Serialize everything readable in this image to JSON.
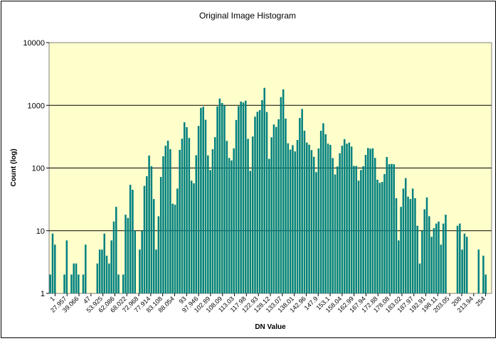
{
  "chart_data": {
    "type": "bar",
    "title": "Original Image Histogram",
    "xlabel": "DN Value",
    "ylabel": "Count (log)",
    "y_scale": "log",
    "ylim": [
      1,
      10000
    ],
    "y_ticks": [
      "1",
      "10",
      "100",
      "1000",
      "10000"
    ],
    "x_tick_labels": [
      "1",
      "27.957",
      "39.066",
      "47",
      "53.925",
      "62.086",
      "68.022",
      "72.968",
      "77.914",
      "83.108",
      "88.054",
      "93",
      "97.946",
      "102.89",
      "108.09",
      "113.03",
      "117.98",
      "122.93",
      "128.12",
      "133.07",
      "138.01",
      "142.96",
      "147.9",
      "153.1",
      "158.04",
      "162.99",
      "167.94",
      "172.88",
      "178.08",
      "183.02",
      "187.97",
      "192.91",
      "198.11",
      "203.05",
      "208",
      "213.94",
      "254"
    ],
    "grid": "horizontal",
    "plot_background": "#ffffcc",
    "bar_color": "#008080",
    "values": [
      2,
      9,
      6,
      0,
      0,
      0,
      2,
      7,
      0,
      2,
      3,
      3,
      2,
      0,
      2,
      6,
      0,
      0,
      0,
      0,
      3,
      5,
      5,
      9,
      4,
      3,
      7,
      14,
      24,
      2,
      0,
      2,
      18,
      16,
      54,
      45,
      10,
      0,
      5,
      10,
      52,
      74,
      158,
      107,
      32,
      5,
      17,
      72,
      154,
      227,
      273,
      200,
      27,
      26,
      47,
      195,
      294,
      537,
      448,
      302,
      63,
      57,
      160,
      469,
      912,
      950,
      588,
      159,
      93,
      200,
      311,
      959,
      1280,
      1090,
      993,
      271,
      145,
      132,
      206,
      584,
      969,
      1150,
      1110,
      1187,
      292,
      90,
      318,
      660,
      787,
      839,
      1210,
      1900,
      784,
      140,
      309,
      495,
      452,
      600,
      1355,
      1800,
      615,
      248,
      197,
      231,
      184,
      280,
      627,
      874,
      393,
      255,
      235,
      193,
      151,
      86,
      205,
      393,
      517,
      346,
      245,
      234,
      144,
      79,
      106,
      172,
      227,
      289,
      244,
      255,
      220,
      108,
      108,
      63,
      93,
      107,
      162,
      209,
      203,
      206,
      145,
      65,
      58,
      60,
      80,
      150,
      115,
      116,
      115,
      33,
      7,
      24,
      47,
      69,
      35,
      32,
      47,
      33,
      12,
      3,
      10,
      22,
      34,
      17,
      8,
      11,
      13,
      14,
      6,
      13,
      18,
      0,
      0,
      0,
      0,
      12,
      13,
      5,
      9,
      8,
      0,
      0,
      0,
      0,
      5,
      0,
      4,
      2,
      0,
      0
    ]
  }
}
